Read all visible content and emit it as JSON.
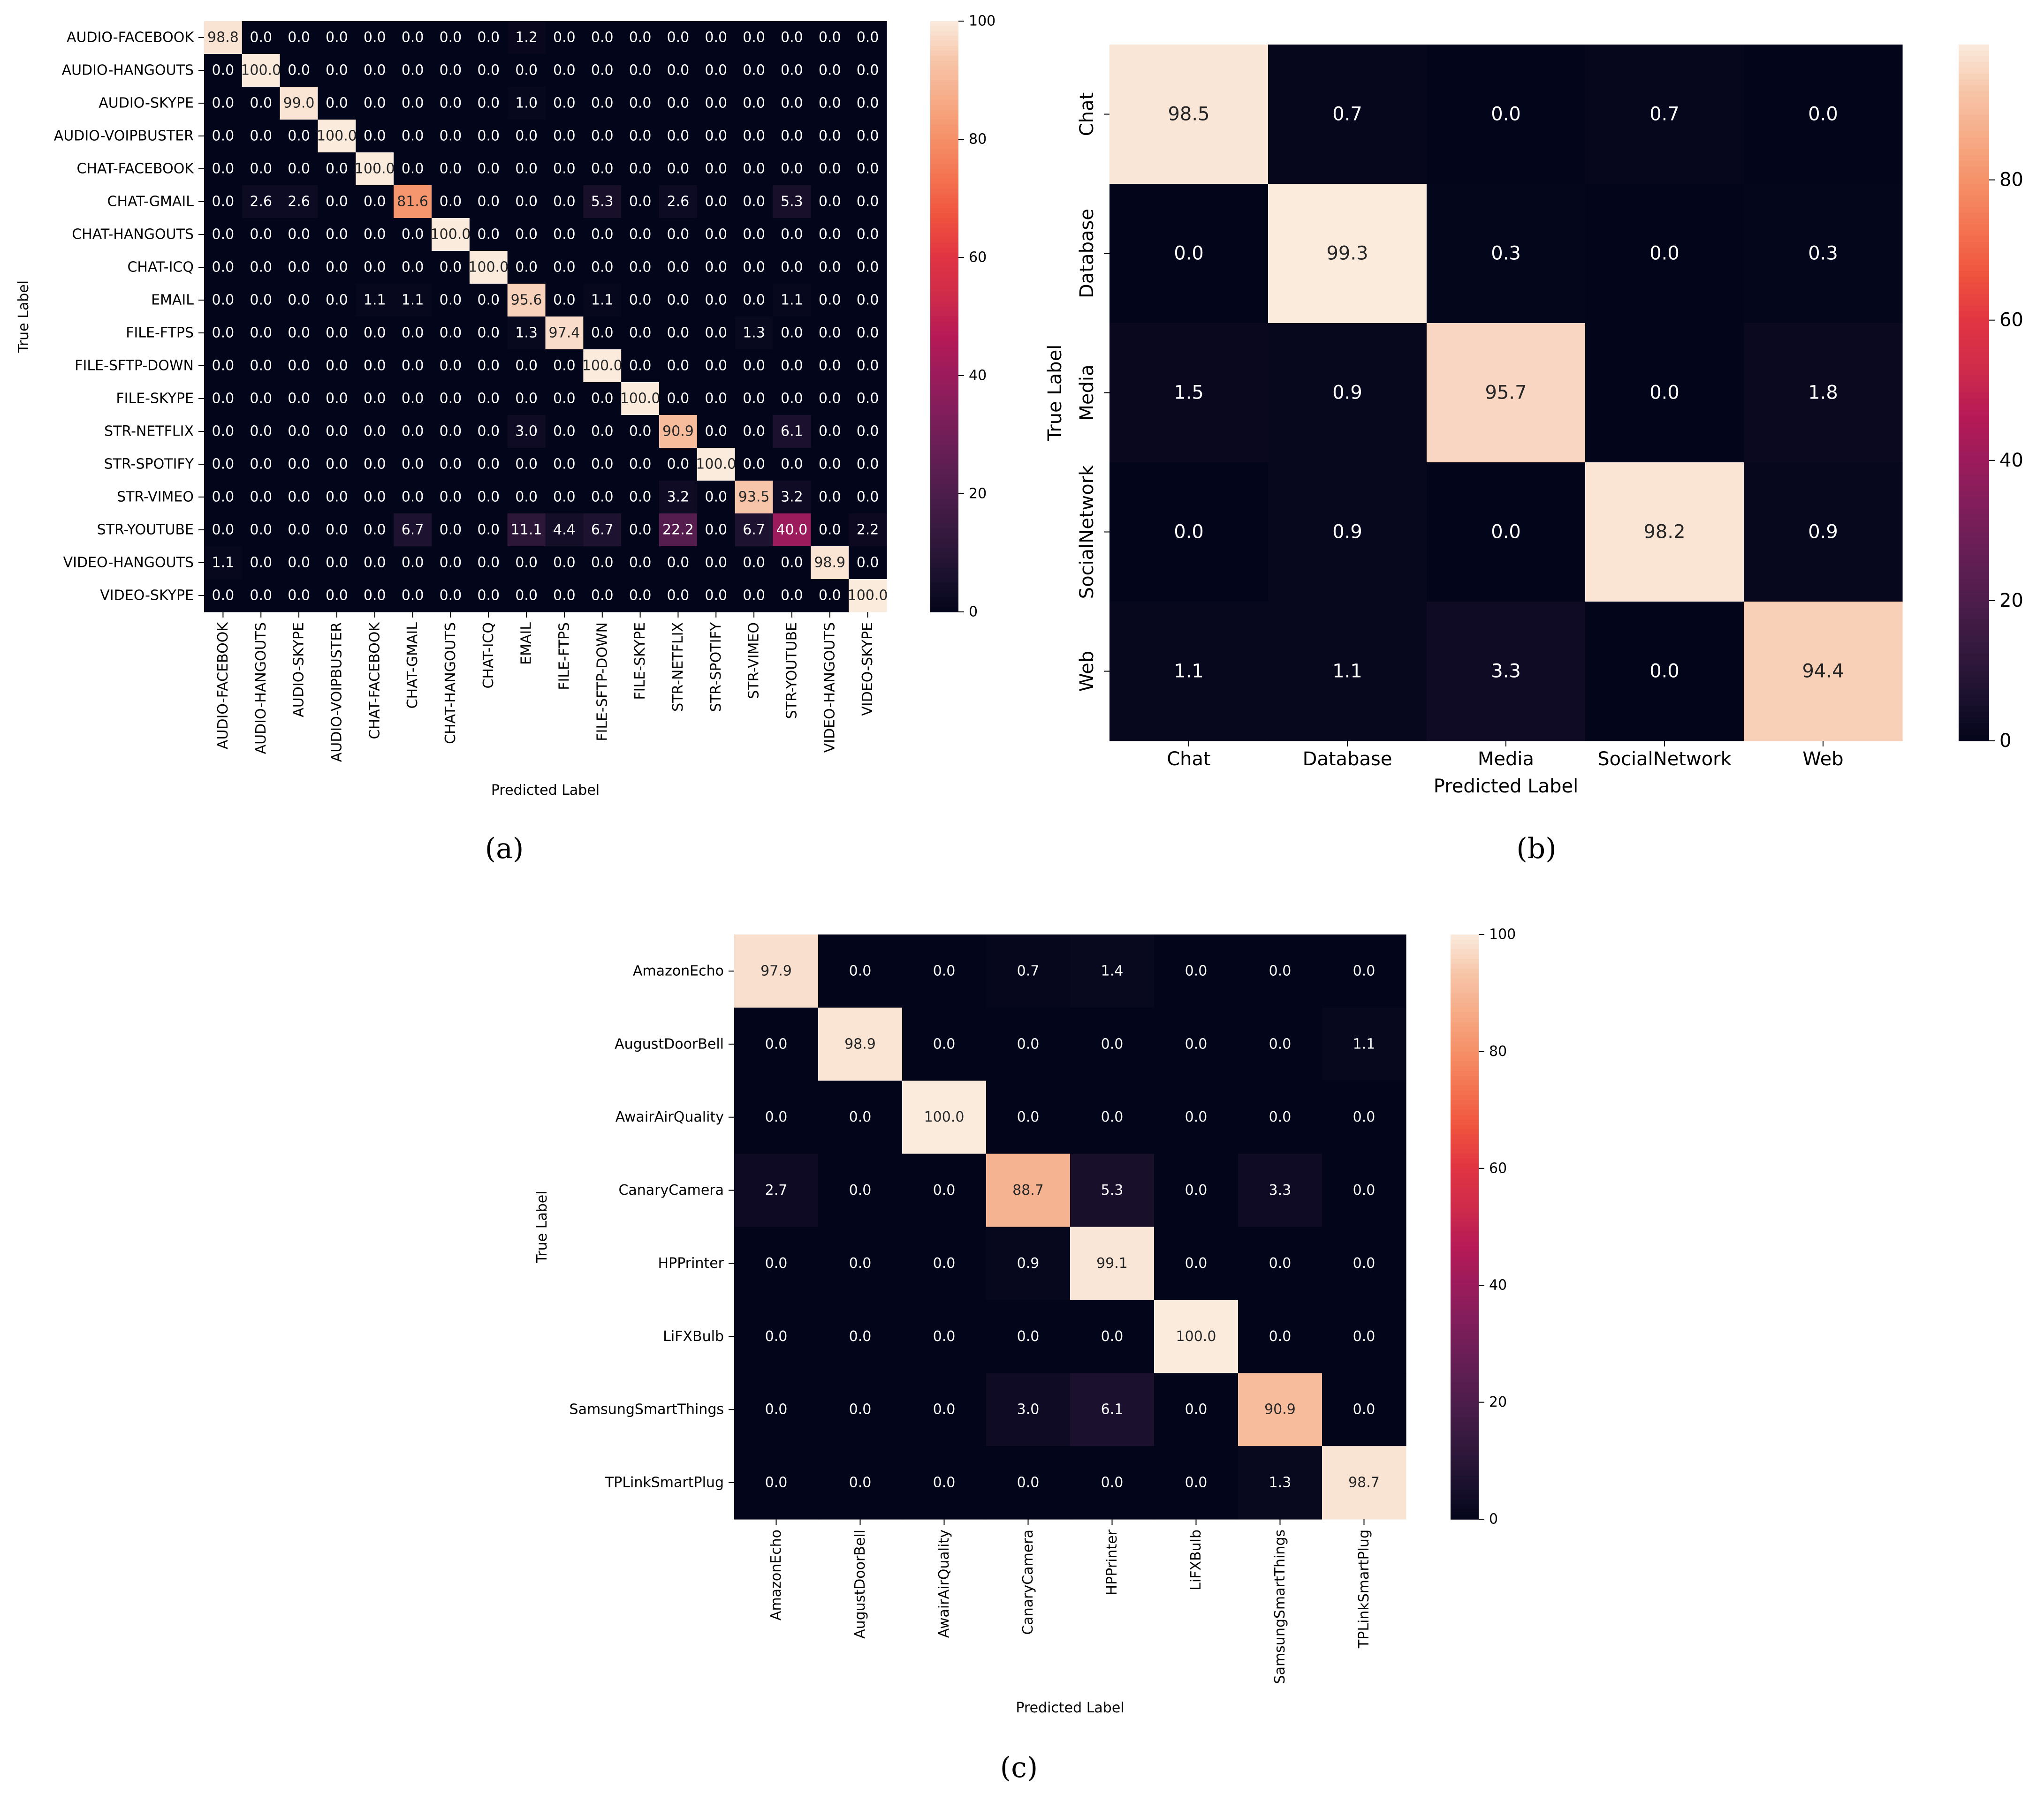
{
  "colormap": {
    "name": "rocket",
    "stops": [
      "#03051a",
      "#1d1230",
      "#35193e",
      "#4c1d4b",
      "#651e55",
      "#7f1e5b",
      "#9b1b5c",
      "#b71a56",
      "#ce2b4b",
      "#e13342",
      "#ef523e",
      "#f4724f",
      "#f59067",
      "#f6ab86",
      "#f7c5a9",
      "#faebdd"
    ]
  },
  "chart_data": [
    {
      "type": "heatmap",
      "caption": "(a)",
      "xlabel": "Predicted Label",
      "ylabel": "True Label",
      "x_categories": [
        "AUDIO-FACEBOOK",
        "AUDIO-HANGOUTS",
        "AUDIO-SKYPE",
        "AUDIO-VOIPBUSTER",
        "CHAT-FACEBOOK",
        "CHAT-GMAIL",
        "CHAT-HANGOUTS",
        "CHAT-ICQ",
        "EMAIL",
        "FILE-FTPS",
        "FILE-SFTP-DOWN",
        "FILE-SKYPE",
        "STR-NETFLIX",
        "STR-SPOTIFY",
        "STR-VIMEO",
        "STR-YOUTUBE",
        "VIDEO-HANGOUTS",
        "VIDEO-SKYPE"
      ],
      "y_categories": [
        "AUDIO-FACEBOOK",
        "AUDIO-HANGOUTS",
        "AUDIO-SKYPE",
        "AUDIO-VOIPBUSTER",
        "CHAT-FACEBOOK",
        "CHAT-GMAIL",
        "CHAT-HANGOUTS",
        "CHAT-ICQ",
        "EMAIL",
        "FILE-FTPS",
        "FILE-SFTP-DOWN",
        "FILE-SKYPE",
        "STR-NETFLIX",
        "STR-SPOTIFY",
        "STR-VIMEO",
        "STR-YOUTUBE",
        "VIDEO-HANGOUTS",
        "VIDEO-SKYPE"
      ],
      "values": [
        [
          98.8,
          0.0,
          0.0,
          0.0,
          0.0,
          0.0,
          0.0,
          0.0,
          1.2,
          0.0,
          0.0,
          0.0,
          0.0,
          0.0,
          0.0,
          0.0,
          0.0,
          0.0
        ],
        [
          0.0,
          100.0,
          0.0,
          0.0,
          0.0,
          0.0,
          0.0,
          0.0,
          0.0,
          0.0,
          0.0,
          0.0,
          0.0,
          0.0,
          0.0,
          0.0,
          0.0,
          0.0
        ],
        [
          0.0,
          0.0,
          99.0,
          0.0,
          0.0,
          0.0,
          0.0,
          0.0,
          1.0,
          0.0,
          0.0,
          0.0,
          0.0,
          0.0,
          0.0,
          0.0,
          0.0,
          0.0
        ],
        [
          0.0,
          0.0,
          0.0,
          100.0,
          0.0,
          0.0,
          0.0,
          0.0,
          0.0,
          0.0,
          0.0,
          0.0,
          0.0,
          0.0,
          0.0,
          0.0,
          0.0,
          0.0
        ],
        [
          0.0,
          0.0,
          0.0,
          0.0,
          100.0,
          0.0,
          0.0,
          0.0,
          0.0,
          0.0,
          0.0,
          0.0,
          0.0,
          0.0,
          0.0,
          0.0,
          0.0,
          0.0
        ],
        [
          0.0,
          2.6,
          2.6,
          0.0,
          0.0,
          81.6,
          0.0,
          0.0,
          0.0,
          0.0,
          5.3,
          0.0,
          2.6,
          0.0,
          0.0,
          5.3,
          0.0,
          0.0
        ],
        [
          0.0,
          0.0,
          0.0,
          0.0,
          0.0,
          0.0,
          100.0,
          0.0,
          0.0,
          0.0,
          0.0,
          0.0,
          0.0,
          0.0,
          0.0,
          0.0,
          0.0,
          0.0
        ],
        [
          0.0,
          0.0,
          0.0,
          0.0,
          0.0,
          0.0,
          0.0,
          100.0,
          0.0,
          0.0,
          0.0,
          0.0,
          0.0,
          0.0,
          0.0,
          0.0,
          0.0,
          0.0
        ],
        [
          0.0,
          0.0,
          0.0,
          0.0,
          1.1,
          1.1,
          0.0,
          0.0,
          95.6,
          0.0,
          1.1,
          0.0,
          0.0,
          0.0,
          0.0,
          1.1,
          0.0,
          0.0
        ],
        [
          0.0,
          0.0,
          0.0,
          0.0,
          0.0,
          0.0,
          0.0,
          0.0,
          1.3,
          97.4,
          0.0,
          0.0,
          0.0,
          0.0,
          1.3,
          0.0,
          0.0,
          0.0
        ],
        [
          0.0,
          0.0,
          0.0,
          0.0,
          0.0,
          0.0,
          0.0,
          0.0,
          0.0,
          0.0,
          100.0,
          0.0,
          0.0,
          0.0,
          0.0,
          0.0,
          0.0,
          0.0
        ],
        [
          0.0,
          0.0,
          0.0,
          0.0,
          0.0,
          0.0,
          0.0,
          0.0,
          0.0,
          0.0,
          0.0,
          100.0,
          0.0,
          0.0,
          0.0,
          0.0,
          0.0,
          0.0
        ],
        [
          0.0,
          0.0,
          0.0,
          0.0,
          0.0,
          0.0,
          0.0,
          0.0,
          3.0,
          0.0,
          0.0,
          0.0,
          90.9,
          0.0,
          0.0,
          6.1,
          0.0,
          0.0
        ],
        [
          0.0,
          0.0,
          0.0,
          0.0,
          0.0,
          0.0,
          0.0,
          0.0,
          0.0,
          0.0,
          0.0,
          0.0,
          0.0,
          100.0,
          0.0,
          0.0,
          0.0,
          0.0
        ],
        [
          0.0,
          0.0,
          0.0,
          0.0,
          0.0,
          0.0,
          0.0,
          0.0,
          0.0,
          0.0,
          0.0,
          0.0,
          3.2,
          0.0,
          93.5,
          3.2,
          0.0,
          0.0
        ],
        [
          0.0,
          0.0,
          0.0,
          0.0,
          0.0,
          6.7,
          0.0,
          0.0,
          11.1,
          4.4,
          6.7,
          0.0,
          22.2,
          0.0,
          6.7,
          40.0,
          0.0,
          2.2
        ],
        [
          1.1,
          0.0,
          0.0,
          0.0,
          0.0,
          0.0,
          0.0,
          0.0,
          0.0,
          0.0,
          0.0,
          0.0,
          0.0,
          0.0,
          0.0,
          0.0,
          98.9,
          0.0
        ],
        [
          0.0,
          0.0,
          0.0,
          0.0,
          0.0,
          0.0,
          0.0,
          0.0,
          0.0,
          0.0,
          0.0,
          0.0,
          0.0,
          0.0,
          0.0,
          0.0,
          0.0,
          100.0
        ]
      ],
      "colorbar": {
        "range": [
          0,
          100
        ],
        "ticks": [
          0,
          20,
          40,
          60,
          80,
          100
        ]
      }
    },
    {
      "type": "heatmap",
      "caption": "(b)",
      "xlabel": "Predicted Label",
      "ylabel": "True Label",
      "x_categories": [
        "Chat",
        "Database",
        "Media",
        "SocialNetwork",
        "Web"
      ],
      "y_categories": [
        "Chat",
        "Database",
        "Media",
        "SocialNetwork",
        "Web"
      ],
      "values": [
        [
          98.5,
          0.7,
          0.0,
          0.7,
          0.0
        ],
        [
          0.0,
          99.3,
          0.3,
          0.0,
          0.3
        ],
        [
          1.5,
          0.9,
          95.7,
          0.0,
          1.8
        ],
        [
          0.0,
          0.9,
          0.0,
          98.2,
          0.9
        ],
        [
          1.1,
          1.1,
          3.3,
          0.0,
          94.4
        ]
      ],
      "colorbar": {
        "range": [
          0,
          99.3
        ],
        "ticks": [
          0,
          20,
          40,
          60,
          80
        ]
      }
    },
    {
      "type": "heatmap",
      "caption": "(c)",
      "xlabel": "Predicted Label",
      "ylabel": "True Label",
      "x_categories": [
        "AmazonEcho",
        "AugustDoorBell",
        "AwairAirQuality",
        "CanaryCamera",
        "HPPrinter",
        "LiFXBulb",
        "SamsungSmartThings",
        "TPLinkSmartPlug"
      ],
      "y_categories": [
        "AmazonEcho",
        "AugustDoorBell",
        "AwairAirQuality",
        "CanaryCamera",
        "HPPrinter",
        "LiFXBulb",
        "SamsungSmartThings",
        "TPLinkSmartPlug"
      ],
      "values": [
        [
          97.9,
          0.0,
          0.0,
          0.7,
          1.4,
          0.0,
          0.0,
          0.0
        ],
        [
          0.0,
          98.9,
          0.0,
          0.0,
          0.0,
          0.0,
          0.0,
          1.1
        ],
        [
          0.0,
          0.0,
          100.0,
          0.0,
          0.0,
          0.0,
          0.0,
          0.0
        ],
        [
          2.7,
          0.0,
          0.0,
          88.7,
          5.3,
          0.0,
          3.3,
          0.0
        ],
        [
          0.0,
          0.0,
          0.0,
          0.9,
          99.1,
          0.0,
          0.0,
          0.0
        ],
        [
          0.0,
          0.0,
          0.0,
          0.0,
          0.0,
          100.0,
          0.0,
          0.0
        ],
        [
          0.0,
          0.0,
          0.0,
          3.0,
          6.1,
          0.0,
          90.9,
          0.0
        ],
        [
          0.0,
          0.0,
          0.0,
          0.0,
          0.0,
          0.0,
          1.3,
          98.7
        ]
      ],
      "colorbar": {
        "range": [
          0,
          100
        ],
        "ticks": [
          0,
          20,
          40,
          60,
          80,
          100
        ]
      }
    }
  ]
}
